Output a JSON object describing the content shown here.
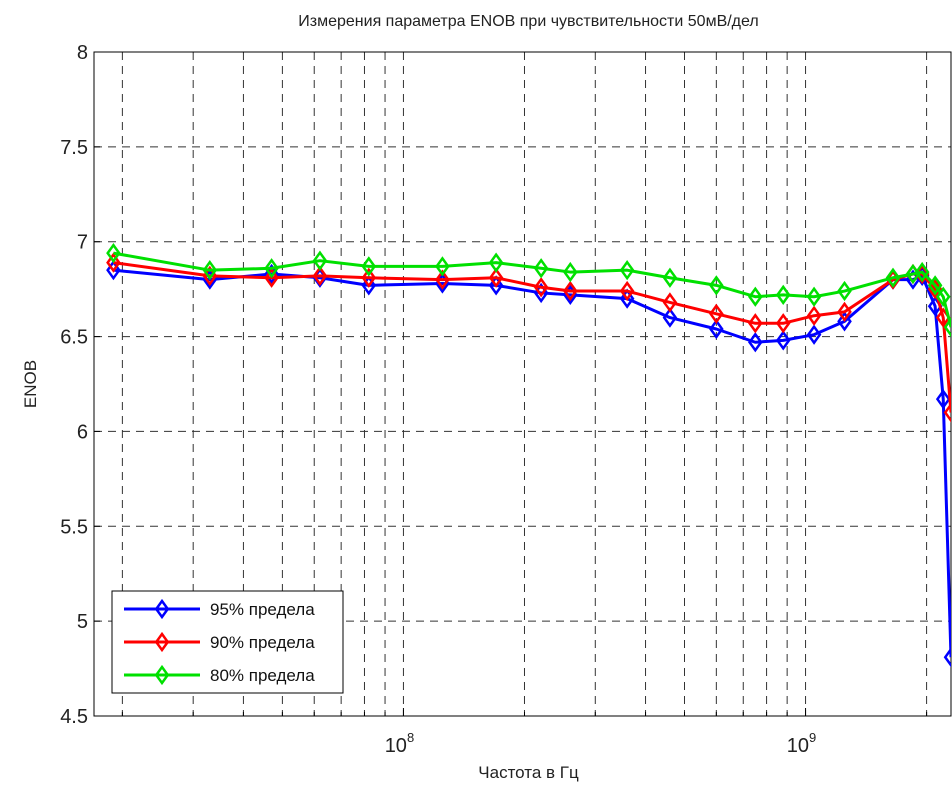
{
  "chart_data": {
    "type": "line",
    "title": "Измерения параметра ENOB при чувствительности 50мВ/дел",
    "xlabel": "Частота в Гц",
    "ylabel": "ENOB",
    "xscale": "log",
    "xlim": [
      17000000,
      2300000000
    ],
    "ylim": [
      4.5,
      8
    ],
    "yticks": [
      "4.5",
      "5",
      "5.5",
      "6",
      "6.5",
      "7",
      "7.5",
      "8"
    ],
    "xticks": [
      {
        "value": 100000000,
        "base": "10",
        "exp": "8"
      },
      {
        "value": 1000000000,
        "base": "10",
        "exp": "9"
      }
    ],
    "grid": true,
    "legend_position": "bottom-left",
    "x": [
      19000000,
      33000000,
      47000000,
      62000000,
      82000000,
      125000000,
      170000000,
      220000000,
      260000000,
      360000000,
      460000000,
      600000000,
      750000000,
      880000000,
      1050000000,
      1250000000,
      1650000000,
      1850000000,
      1950000000,
      2100000000,
      2200000000,
      2300000000
    ],
    "series": [
      {
        "name": "95% предела",
        "color": "#0000ff",
        "values": [
          6.85,
          6.8,
          6.83,
          6.81,
          6.77,
          6.78,
          6.77,
          6.73,
          6.72,
          6.7,
          6.6,
          6.54,
          6.47,
          6.48,
          6.51,
          6.58,
          6.8,
          6.8,
          6.82,
          6.66,
          6.17,
          4.81
        ]
      },
      {
        "name": "90% предела",
        "color": "#ff0000",
        "values": [
          6.89,
          6.82,
          6.81,
          6.82,
          6.81,
          6.8,
          6.81,
          6.76,
          6.74,
          6.74,
          6.68,
          6.62,
          6.57,
          6.57,
          6.61,
          6.63,
          6.8,
          6.83,
          6.83,
          6.75,
          6.6,
          6.1
        ]
      },
      {
        "name": "80% предела",
        "color": "#00e000",
        "values": [
          6.94,
          6.85,
          6.86,
          6.9,
          6.87,
          6.87,
          6.89,
          6.86,
          6.84,
          6.85,
          6.81,
          6.77,
          6.71,
          6.72,
          6.71,
          6.74,
          6.81,
          6.83,
          6.84,
          6.77,
          6.71,
          6.55
        ]
      }
    ]
  }
}
